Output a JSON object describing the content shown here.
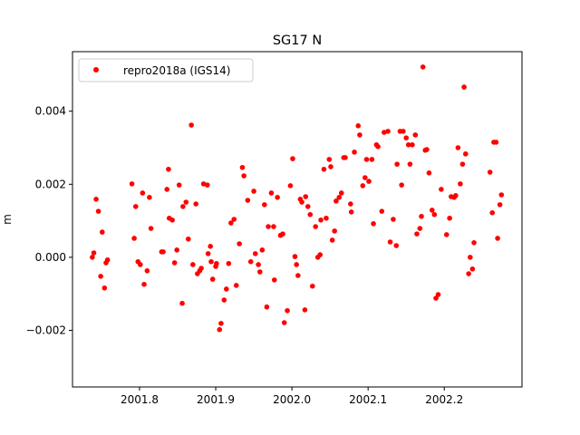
{
  "chart_data": {
    "type": "scatter",
    "title": "SG17 N",
    "xlabel": "",
    "ylabel": "m",
    "xlim": [
      2001.712,
      2002.302
    ],
    "ylim": [
      -0.00355,
      0.00563
    ],
    "xticks": [
      2001.8,
      2001.9,
      2002.0,
      2002.1,
      2002.2
    ],
    "xtick_labels": [
      "2001.8",
      "2001.9",
      "2002.0",
      "2002.1",
      "2002.2"
    ],
    "yticks": [
      -0.002,
      0.0,
      0.002,
      0.004
    ],
    "ytick_labels": [
      "−0.002",
      "0.000",
      "0.002",
      "0.004"
    ],
    "grid": false,
    "legend_placement": "upper-left",
    "series": [
      {
        "name": "repro2018a (IGS14)",
        "color": "#ff0000",
        "marker": "circle",
        "x": [
          2001.738,
          2001.74,
          2001.743,
          2001.746,
          2001.749,
          2001.751,
          2001.754,
          2001.756,
          2001.758,
          2001.79,
          2001.793,
          2001.795,
          2001.798,
          2001.801,
          2001.804,
          2001.806,
          2001.81,
          2001.813,
          2001.815,
          2001.829,
          2001.831,
          2001.836,
          2001.838,
          2001.839,
          2001.843,
          2001.846,
          2001.849,
          2001.852,
          2001.856,
          2001.857,
          2001.861,
          2001.864,
          2001.868,
          2001.87,
          2001.874,
          2001.876,
          2001.879,
          2001.881,
          2001.884,
          2001.889,
          2001.89,
          2001.893,
          2001.894,
          2001.896,
          2001.9,
          2001.901,
          2001.905,
          2001.907,
          2001.911,
          2001.914,
          2001.917,
          2001.92,
          2001.924,
          2001.927,
          2001.931,
          2001.935,
          2001.937,
          2001.942,
          2001.946,
          2001.95,
          2001.952,
          2001.956,
          2001.958,
          2001.961,
          2001.964,
          2001.967,
          2001.969,
          2001.973,
          2001.976,
          2001.977,
          2001.981,
          2001.985,
          2001.988,
          2001.99,
          2001.994,
          2001.998,
          2002.001,
          2002.004,
          2002.006,
          2002.008,
          2002.011,
          2002.013,
          2002.017,
          2002.018,
          2002.021,
          2002.024,
          2002.027,
          2002.031,
          2002.034,
          2002.037,
          2002.038,
          2002.042,
          2002.045,
          2002.049,
          2002.051,
          2002.053,
          2002.056,
          2002.058,
          2002.062,
          2002.065,
          2002.068,
          2002.07,
          2002.077,
          2002.078,
          2002.082,
          2002.087,
          2002.089,
          2002.093,
          2002.096,
          2002.098,
          2002.101,
          2002.105,
          2002.107,
          2002.111,
          2002.113,
          2002.118,
          2002.121,
          2002.126,
          2002.129,
          2002.133,
          2002.137,
          2002.138,
          2002.142,
          2002.144,
          2002.146,
          2002.15,
          2002.153,
          2002.155,
          2002.158,
          2002.162,
          2002.164,
          2002.168,
          2002.17,
          2002.172,
          2002.175,
          2002.177,
          2002.18,
          2002.184,
          2002.187,
          2002.189,
          2002.192,
          2002.196,
          2002.203,
          2002.207,
          2002.209,
          2002.213,
          2002.215,
          2002.218,
          2002.221,
          2002.224,
          2002.226,
          2002.228,
          2002.232,
          2002.234,
          2002.237,
          2002.239,
          2002.26,
          2002.263,
          2002.265,
          2002.268,
          2002.27,
          2002.273,
          2002.275
        ],
        "y": [
          0.0,
          0.00012,
          0.00159,
          0.00126,
          -0.00052,
          0.00069,
          -0.00084,
          -0.00015,
          -7e-05,
          0.00201,
          0.00052,
          0.00139,
          -0.00012,
          -0.0002,
          0.00176,
          -0.00074,
          -0.00037,
          0.00164,
          0.00079,
          0.00015,
          0.00015,
          0.00186,
          0.00241,
          0.00107,
          0.00102,
          -0.00015,
          0.0002,
          0.00198,
          -0.00126,
          0.00139,
          0.00151,
          0.0005,
          0.00362,
          -0.0002,
          0.00146,
          -0.00045,
          -0.00037,
          -0.0003,
          0.00201,
          0.00198,
          0.0001,
          0.0003,
          -0.00012,
          -0.0006,
          -0.00025,
          -0.00017,
          -0.00198,
          -0.00181,
          -0.00117,
          -0.00087,
          -0.00017,
          0.00094,
          0.00104,
          -0.00077,
          0.00037,
          0.00246,
          0.00223,
          0.00156,
          -0.00012,
          0.00181,
          0.0001,
          -0.0002,
          -0.0004,
          0.0002,
          0.00144,
          -0.00136,
          0.00084,
          0.00176,
          0.00084,
          -0.00062,
          0.00164,
          0.0006,
          0.00064,
          -0.00179,
          -0.00146,
          0.00196,
          0.0027,
          2e-05,
          -0.0002,
          -0.0005,
          0.00159,
          0.00151,
          -0.00144,
          0.00166,
          0.00139,
          0.00117,
          -0.00079,
          0.00084,
          0.0,
          7e-05,
          0.00102,
          0.00241,
          0.00107,
          0.00268,
          0.00248,
          0.00047,
          0.00072,
          0.00154,
          0.00164,
          0.00176,
          0.00273,
          0.00273,
          0.00146,
          0.00124,
          0.00288,
          0.0036,
          0.00335,
          0.00196,
          0.00218,
          0.00268,
          0.00208,
          0.00268,
          0.00092,
          0.00308,
          0.00303,
          0.00126,
          0.00342,
          0.00345,
          0.00042,
          0.00104,
          0.00032,
          0.00255,
          0.00345,
          0.00198,
          0.00345,
          0.00327,
          0.00308,
          0.00255,
          0.00308,
          0.00335,
          0.00064,
          0.00079,
          0.00112,
          0.00521,
          0.00293,
          0.00295,
          0.00231,
          0.00129,
          0.00117,
          -0.00112,
          -0.00102,
          0.00186,
          0.00062,
          0.00107,
          0.00166,
          0.00164,
          0.00169,
          0.003,
          0.00201,
          0.00255,
          0.00466,
          0.00283,
          -0.00045,
          0.0,
          -0.00032,
          0.0004,
          0.00233,
          0.00122,
          0.00315,
          0.00315,
          0.00052,
          0.00144,
          0.00171
        ]
      }
    ]
  }
}
